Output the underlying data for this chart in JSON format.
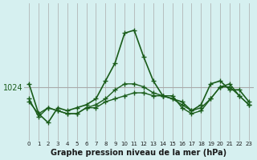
{
  "title": "Graphe pression niveau de la mer (hPa)",
  "background_color": "#d6f0f0",
  "plot_bg_color": "#d6f0f0",
  "grid_color": "#aaaaaa",
  "line_color": "#1a5c1a",
  "x_labels": [
    "0",
    "1",
    "2",
    "3",
    "4",
    "5",
    "6",
    "7",
    "8",
    "9",
    "10",
    "11",
    "12",
    "13",
    "14",
    "15",
    "16",
    "17",
    "18",
    "19",
    "20",
    "21",
    "22",
    "23"
  ],
  "series": [
    [
      1024.5,
      1019.5,
      1018.0,
      1020.5,
      1020.0,
      1020.5,
      1021.0,
      1022.0,
      1025.0,
      1028.0,
      1033.0,
      1033.5,
      1029.0,
      1025.0,
      1022.5,
      1022.0,
      1021.5,
      1020.0,
      1021.0,
      1024.5,
      1025.0,
      1023.5,
      1023.5,
      1021.5
    ],
    [
      1022.0,
      1019.0,
      1020.5,
      1020.0,
      1019.5,
      1019.5,
      1020.5,
      1020.5,
      1021.5,
      1022.0,
      1022.5,
      1023.0,
      1023.0,
      1022.5,
      1022.5,
      1022.5,
      1020.5,
      1019.5,
      1020.0,
      1022.0,
      1024.0,
      1024.0,
      1022.5,
      1021.0
    ],
    [
      1021.5,
      1019.5,
      1020.5,
      1020.0,
      1019.5,
      1019.5,
      1020.5,
      1021.0,
      1022.0,
      1023.5,
      1024.5,
      1024.5,
      1024.0,
      1023.0,
      1022.5,
      1022.0,
      1021.0,
      1020.0,
      1020.5,
      1022.0,
      1024.0,
      1024.5,
      1022.5,
      1021.0
    ]
  ],
  "ylim": [
    1015,
    1038
  ],
  "yticks": [
    1024
  ],
  "hline_y": 1024,
  "figsize": [
    3.2,
    2.0
  ],
  "dpi": 100
}
